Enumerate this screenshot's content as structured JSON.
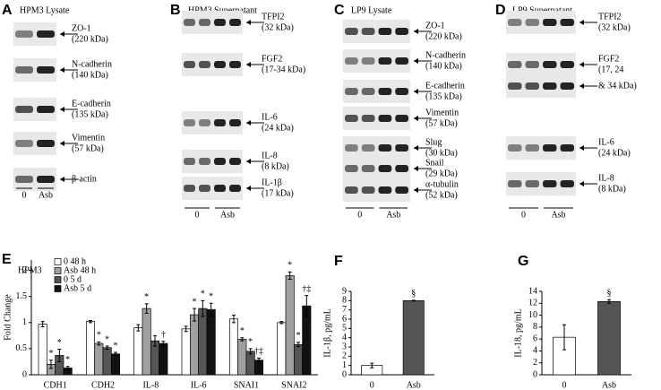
{
  "blots": [
    {
      "letter": "A",
      "title": "HPM3 Lysate",
      "lanes": [
        "0",
        "Asb"
      ],
      "bands": [
        {
          "name": "ZO-1",
          "size": "(220 kDa)"
        },
        {
          "name": "N-cadherin",
          "size": "(140 kDa)"
        },
        {
          "name": "E-cadherin",
          "size": "(135 kDa)"
        },
        {
          "name": "Vimentin",
          "size": "(57 kDa)"
        },
        {
          "name": "β-actin",
          "size": null
        }
      ]
    },
    {
      "letter": "B",
      "title": "HPM3 Supernatant",
      "lanes": [
        "0",
        "Asb"
      ],
      "bands": [
        {
          "name": "TFPI2",
          "size": "(32 kDa)"
        },
        {
          "name": "FGF2",
          "size": "(17-34 kDa)"
        },
        {
          "name": "IL-6",
          "size": "(24 kDa)"
        },
        {
          "name": "IL-8",
          "size": "(8 kDa)"
        },
        {
          "name": "IL-1β",
          "size": "(17 kDa)"
        }
      ]
    },
    {
      "letter": "C",
      "title": "LP9 Lysate",
      "lanes": [
        "0",
        "Asb"
      ],
      "bands": [
        {
          "name": "ZO-1",
          "size": "(220 kDa)"
        },
        {
          "name": "N-cadherin",
          "size": "(140 kDa)"
        },
        {
          "name": "E-cadherin",
          "size": "(135 kDa)"
        },
        {
          "name": "Vimentin",
          "size": "(57 kDa)"
        },
        {
          "name": "Slug",
          "size": "(30 kDa)"
        },
        {
          "name": "Snail",
          "size": "(29 kDa)"
        },
        {
          "name": "α-tubulin",
          "size": "(52 kDa)"
        }
      ]
    },
    {
      "letter": "D",
      "title": "LP9 Supernatant",
      "lanes": [
        "0",
        "Asb"
      ],
      "bands": [
        {
          "name": "TFPI2",
          "size": "(32 kDa)"
        },
        {
          "name": "FGF2",
          "size": "(17, 24"
        },
        {
          "name": null,
          "size": "& 34 kDa)"
        },
        {
          "name": "IL-6",
          "size": "(24 kDa)"
        },
        {
          "name": "IL-8",
          "size": "(8 kDa)"
        }
      ]
    }
  ],
  "chart_data": [
    {
      "type": "bar",
      "letter": "E",
      "title": "HPM3",
      "y_label": "Fold Change",
      "categories": [
        "CDH1",
        "CDH2",
        "IL-8",
        "IL-6",
        "SNAI1",
        "SNAI2"
      ],
      "ylim": [
        0,
        2.2
      ],
      "yticks": [
        0,
        0.5,
        1,
        1.5,
        2
      ],
      "legend": "upper-left",
      "series": [
        {
          "name": "0 48 h",
          "color": "#ffffff",
          "values": [
            0.97,
            1.02,
            0.9,
            0.88,
            1.07,
            1.0
          ],
          "errors": [
            0.05,
            0.02,
            0.06,
            0.05,
            0.07,
            0.02
          ],
          "markers": [
            null,
            null,
            null,
            null,
            null,
            null
          ]
        },
        {
          "name": "Asb 48 h",
          "color": "#a0a0a0",
          "values": [
            0.2,
            0.6,
            1.27,
            1.15,
            0.68,
            1.9
          ],
          "errors": [
            0.08,
            0.03,
            0.09,
            0.12,
            0.03,
            0.07
          ],
          "markers": [
            "*",
            "*",
            "*",
            "*",
            "*",
            "*"
          ]
        },
        {
          "name": "0 5 d",
          "color": "#555555",
          "values": [
            0.37,
            0.52,
            0.65,
            1.27,
            0.45,
            0.58
          ],
          "errors": [
            0.12,
            0.03,
            0.1,
            0.15,
            0.05,
            0.04
          ],
          "markers": [
            "*",
            "*",
            null,
            "*",
            "*",
            "*"
          ]
        },
        {
          "name": "Asb 5 d",
          "color": "#111111",
          "values": [
            0.13,
            0.4,
            0.6,
            1.25,
            0.28,
            1.32
          ],
          "errors": [
            0.03,
            0.03,
            0.04,
            0.12,
            0.04,
            0.2
          ],
          "markers": [
            "*",
            "*",
            "†",
            "*",
            "†‡",
            "†‡"
          ]
        }
      ]
    },
    {
      "type": "bar",
      "letter": "F",
      "y_label": "IL-1β, pg/mL",
      "categories": [
        "0",
        "Asb"
      ],
      "values": [
        1.0,
        8.0
      ],
      "errors": [
        0.25,
        0.05
      ],
      "colors": [
        "#ffffff",
        "#555555"
      ],
      "markers": [
        null,
        "§"
      ],
      "ylim": [
        0,
        9
      ],
      "yticks": [
        0,
        1,
        2,
        3,
        4,
        5,
        6,
        7,
        8,
        9
      ]
    },
    {
      "type": "bar",
      "letter": "G",
      "y_label": "IL-18, pg/mL",
      "categories": [
        "0",
        "Asb"
      ],
      "values": [
        6.3,
        12.3
      ],
      "errors": [
        2.1,
        0.3
      ],
      "colors": [
        "#ffffff",
        "#555555"
      ],
      "markers": [
        null,
        "§"
      ],
      "ylim": [
        0,
        14
      ],
      "yticks": [
        0,
        2,
        4,
        6,
        8,
        10,
        12,
        14
      ]
    }
  ]
}
